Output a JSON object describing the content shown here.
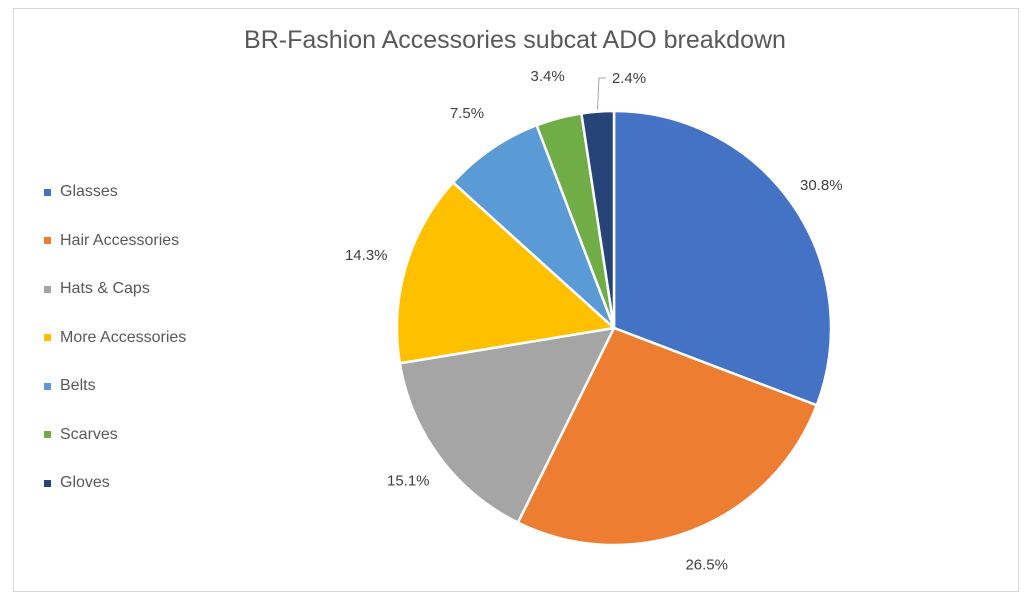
{
  "chart_data": {
    "type": "pie",
    "title": "BR-Fashion Accessories subcat ADO breakdown",
    "legend_position": "left",
    "slices": [
      {
        "name": "Glasses",
        "value": 30.8,
        "label": "30.8%",
        "color": "#4472C4"
      },
      {
        "name": "Hair Accessories",
        "value": 26.5,
        "label": "26.5%",
        "color": "#ED7D31"
      },
      {
        "name": "Hats & Caps",
        "value": 15.1,
        "label": "15.1%",
        "color": "#A5A5A5"
      },
      {
        "name": "More Accessories",
        "value": 14.3,
        "label": "14.3%",
        "color": "#FFC000"
      },
      {
        "name": "Belts",
        "value": 7.5,
        "label": "7.5%",
        "color": "#5B9BD5"
      },
      {
        "name": "Scarves",
        "value": 3.4,
        "label": "3.4%",
        "color": "#70AD47"
      },
      {
        "name": "Gloves",
        "value": 2.4,
        "label": "2.4%",
        "color": "#264478"
      }
    ]
  }
}
